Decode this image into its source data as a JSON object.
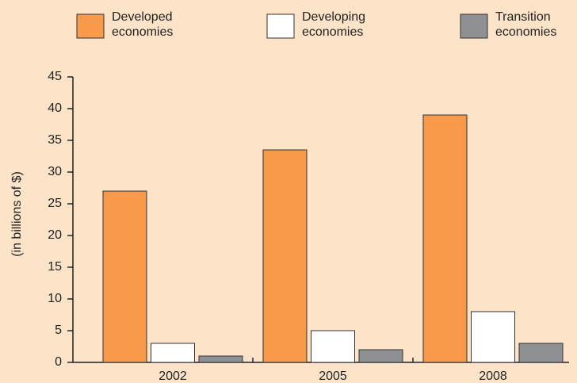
{
  "chart_data": {
    "type": "bar",
    "y_label": "(in billions of $)",
    "categories": [
      "2002",
      "2005",
      "2008"
    ],
    "series": [
      {
        "name": "Developed economies",
        "color": "#f79a49",
        "values": [
          27,
          33.5,
          39
        ]
      },
      {
        "name": "Developing economies",
        "color": "#ffffff",
        "values": [
          3,
          5,
          8
        ]
      },
      {
        "name": "Transition economies",
        "color": "#8e9094",
        "values": [
          1,
          2,
          3
        ]
      }
    ],
    "ylim": [
      0,
      45
    ],
    "yticks": [
      0,
      5,
      10,
      15,
      20,
      25,
      30,
      35,
      40,
      45
    ],
    "grid": false,
    "legend": "top"
  }
}
